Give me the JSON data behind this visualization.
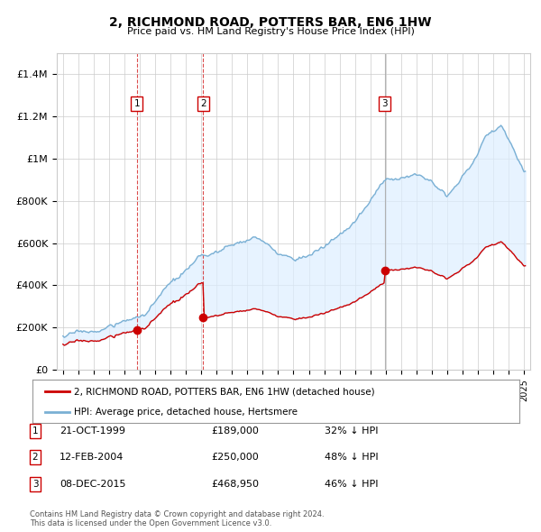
{
  "title": "2, RICHMOND ROAD, POTTERS BAR, EN6 1HW",
  "subtitle": "Price paid vs. HM Land Registry's House Price Index (HPI)",
  "ylim": [
    0,
    1500000
  ],
  "yticks": [
    0,
    200000,
    400000,
    600000,
    800000,
    1000000,
    1200000,
    1400000
  ],
  "ytick_labels": [
    "£0",
    "£200K",
    "£400K",
    "£600K",
    "£800K",
    "£1M",
    "£1.2M",
    "£1.4M"
  ],
  "xlim_start": 1994.6,
  "xlim_end": 2025.4,
  "sale_color": "#cc0000",
  "hpi_color": "#7ab0d4",
  "hpi_fill_color": "#ddeeff",
  "sales": [
    {
      "date_dec": 1999.81,
      "price": 189000,
      "label": "1"
    },
    {
      "date_dec": 2004.12,
      "price": 250000,
      "label": "2"
    },
    {
      "date_dec": 2015.93,
      "price": 468950,
      "label": "3"
    }
  ],
  "legend_sale_label": "2, RICHMOND ROAD, POTTERS BAR, EN6 1HW (detached house)",
  "legend_hpi_label": "HPI: Average price, detached house, Hertsmere",
  "table_rows": [
    {
      "num": "1",
      "date": "21-OCT-1999",
      "price": "£189,000",
      "hpi": "32% ↓ HPI"
    },
    {
      "num": "2",
      "date": "12-FEB-2004",
      "price": "£250,000",
      "hpi": "48% ↓ HPI"
    },
    {
      "num": "3",
      "date": "08-DEC-2015",
      "price": "£468,950",
      "hpi": "46% ↓ HPI"
    }
  ],
  "footer": "Contains HM Land Registry data © Crown copyright and database right 2024.\nThis data is licensed under the Open Government Licence v3.0.",
  "bg_color": "#ffffff",
  "grid_color": "#cccccc"
}
